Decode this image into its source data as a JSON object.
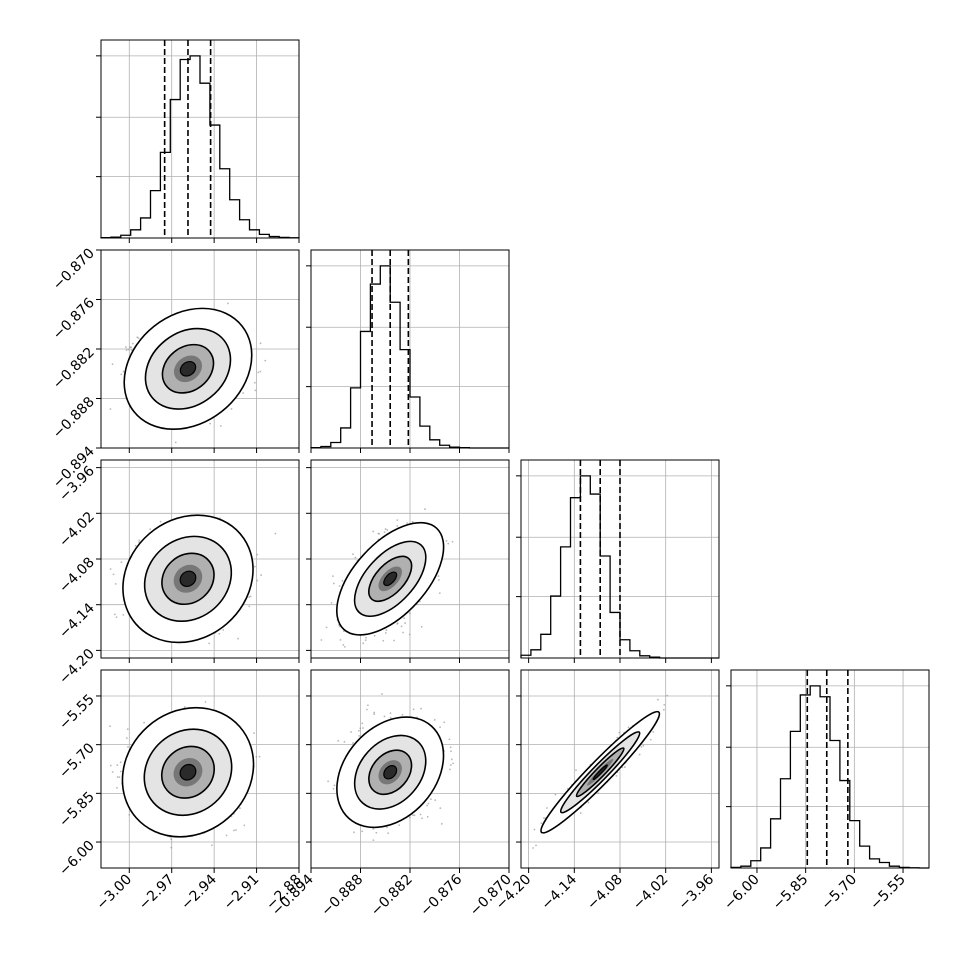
{
  "chart_data": {
    "type": "corner",
    "grid": true,
    "parameters": [
      {
        "range": [
          -3.02,
          -2.88
        ],
        "ticks": [
          -3.0,
          -2.97,
          -2.94,
          -2.91,
          -2.88
        ],
        "tick_labels": [
          "−3.00",
          "−2.97",
          "−2.94",
          "−2.91",
          "−2.88"
        ],
        "quantiles": [
          -2.975,
          -2.9585,
          -2.9425
        ],
        "hist": {
          "edges_range": [
            -3.02,
            -2.88
          ],
          "bins": 20,
          "values": [
            2,
            5,
            15,
            45,
            110,
            260,
            470,
            760,
            980,
            1000,
            850,
            620,
            380,
            210,
            100,
            45,
            20,
            8,
            3,
            1
          ]
        }
      },
      {
        "range": [
          -0.894,
          -0.87
        ],
        "ticks": [
          -0.894,
          -0.888,
          -0.882,
          -0.876,
          -0.87
        ],
        "tick_labels": [
          "−0.894",
          "−0.888",
          "−0.882",
          "−0.876",
          "−0.870"
        ],
        "quantiles": [
          -0.8866,
          -0.8844,
          -0.8822
        ],
        "hist": {
          "edges_range": [
            -0.894,
            -0.87
          ],
          "bins": 20,
          "values": [
            2,
            8,
            30,
            110,
            330,
            640,
            900,
            1000,
            800,
            540,
            280,
            120,
            45,
            15,
            5,
            2,
            0,
            0,
            0,
            0
          ]
        }
      },
      {
        "range": [
          -4.21,
          -3.95
        ],
        "ticks": [
          -4.2,
          -4.14,
          -4.08,
          -4.02,
          -3.96
        ],
        "tick_labels": [
          "−4.20",
          "−4.14",
          "−4.08",
          "−4.02",
          "−3.96"
        ],
        "quantiles": [
          -4.132,
          -4.106,
          -4.08
        ],
        "hist": {
          "edges_range": [
            -4.21,
            -3.95
          ],
          "bins": 20,
          "values": [
            15,
            45,
            130,
            340,
            610,
            880,
            1000,
            900,
            560,
            250,
            100,
            40,
            12,
            5,
            0,
            0,
            0,
            0,
            0,
            0
          ]
        }
      },
      {
        "range": [
          -6.08,
          -5.47
        ],
        "ticks": [
          -6.0,
          -5.85,
          -5.7,
          -5.55
        ],
        "tick_labels": [
          "−6.00",
          "−5.85",
          "−5.70",
          "−5.55"
        ],
        "quantiles": [
          -5.845,
          -5.785,
          -5.72
        ],
        "hist": {
          "edges_range": [
            -6.08,
            -5.47
          ],
          "bins": 20,
          "values": [
            3,
            10,
            40,
            110,
            270,
            490,
            750,
            950,
            1000,
            940,
            700,
            480,
            260,
            120,
            50,
            30,
            10,
            3,
            1,
            0
          ]
        }
      }
    ],
    "pairs": [
      {
        "row": 1,
        "col": 0,
        "corr": 0.0,
        "contour_levels_sigma": [
          1.2,
          2.0,
          3.0
        ]
      },
      {
        "row": 2,
        "col": 0,
        "corr": 0.0,
        "contour_levels_sigma": [
          1.2,
          2.0,
          3.0
        ]
      },
      {
        "row": 2,
        "col": 1,
        "corr": 0.45,
        "contour_levels_sigma": [
          1.2,
          2.0,
          3.0
        ]
      },
      {
        "row": 3,
        "col": 0,
        "corr": 0.0,
        "contour_levels_sigma": [
          1.2,
          2.0,
          3.0
        ]
      },
      {
        "row": 3,
        "col": 1,
        "corr": 0.15,
        "contour_levels_sigma": [
          1.2,
          2.0,
          3.0
        ]
      },
      {
        "row": 3,
        "col": 2,
        "corr": 0.95,
        "contour_levels_sigma": [
          1.2,
          2.0,
          3.0
        ]
      }
    ],
    "colors": {
      "line": "#000000",
      "grid": "#b0b0b0",
      "scatter": "#9a9a9a"
    }
  }
}
